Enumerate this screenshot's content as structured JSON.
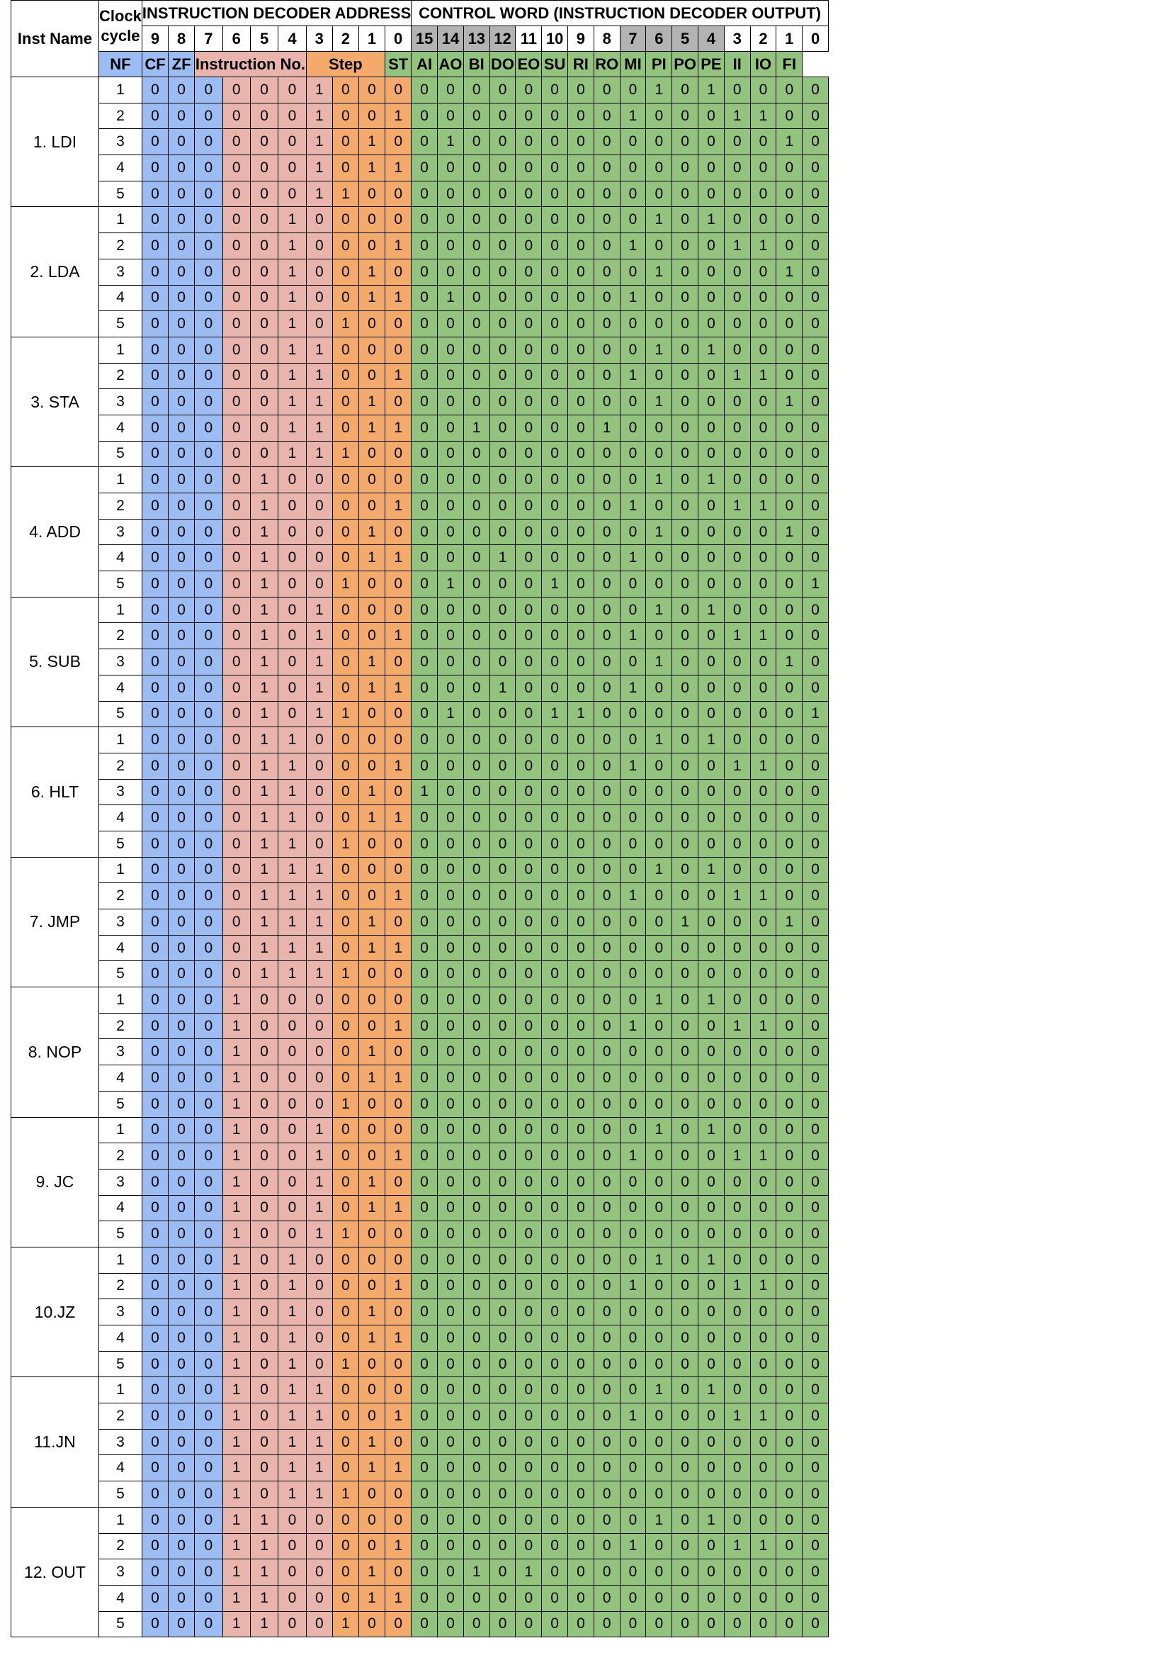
{
  "header": {
    "inst_name": "Inst Name",
    "clock_cycle": "Clock cycle",
    "decoder_address": "INSTRUCTION DECODER ADDRESS",
    "control_word": "CONTROL WORD (INSTRUCTION DECODER OUTPUT)",
    "address_bits": [
      "9",
      "8",
      "7",
      "6",
      "5",
      "4",
      "3",
      "2",
      "1",
      "0"
    ],
    "control_bits": [
      "15",
      "14",
      "13",
      "12",
      "11",
      "10",
      "9",
      "8",
      "7",
      "6",
      "5",
      "4",
      "3",
      "2",
      "1",
      "0"
    ],
    "flag_labels": [
      "NF",
      "CF",
      "ZF"
    ],
    "instruction_no_label": "Instruction No.",
    "step_label": "Step",
    "signal_labels": [
      "ST",
      "AI",
      "AO",
      "BI",
      "DO",
      "EO",
      "SU",
      "RI",
      "RO",
      "MI",
      "PI",
      "PO",
      "PE",
      "II",
      "IO",
      "FI"
    ]
  },
  "colors": {
    "flags": "#9cbdf4",
    "instruction": "#e8b4ac",
    "step": "#f4aa6a",
    "control": "#93c47d",
    "highlighted_bit_header": "#b3b3b3",
    "grey_control_bits": [
      "15",
      "14",
      "13",
      "12",
      "7",
      "6",
      "5",
      "4"
    ]
  },
  "instructions": [
    {
      "name": "1. LDI",
      "steps": [
        {
          "cycle": "1",
          "address": "0000001000",
          "control": "0000000001010000"
        },
        {
          "cycle": "2",
          "address": "0000001001",
          "control": "0000000010001100"
        },
        {
          "cycle": "3",
          "address": "0000001010",
          "control": "0100000000000010"
        },
        {
          "cycle": "4",
          "address": "0000001011",
          "control": "0000000000000000"
        },
        {
          "cycle": "5",
          "address": "0000001100",
          "control": "0000000000000000"
        }
      ]
    },
    {
      "name": "2. LDA",
      "steps": [
        {
          "cycle": "1",
          "address": "0000010000",
          "control": "0000000001010000"
        },
        {
          "cycle": "2",
          "address": "0000010001",
          "control": "0000000010001100"
        },
        {
          "cycle": "3",
          "address": "0000010010",
          "control": "0000000001000010"
        },
        {
          "cycle": "4",
          "address": "0000010011",
          "control": "0100000010000000"
        },
        {
          "cycle": "5",
          "address": "0000010100",
          "control": "0000000000000000"
        }
      ]
    },
    {
      "name": "3. STA",
      "steps": [
        {
          "cycle": "1",
          "address": "0000011000",
          "control": "0000000001010000"
        },
        {
          "cycle": "2",
          "address": "0000011001",
          "control": "0000000010001100"
        },
        {
          "cycle": "3",
          "address": "0000011010",
          "control": "0000000001000010"
        },
        {
          "cycle": "4",
          "address": "0000011011",
          "control": "0010000100000000"
        },
        {
          "cycle": "5",
          "address": "0000011100",
          "control": "0000000000000000"
        }
      ]
    },
    {
      "name": "4. ADD",
      "steps": [
        {
          "cycle": "1",
          "address": "0000100000",
          "control": "0000000001010000"
        },
        {
          "cycle": "2",
          "address": "0000100001",
          "control": "0000000010001100"
        },
        {
          "cycle": "3",
          "address": "0000100010",
          "control": "0000000001000010"
        },
        {
          "cycle": "4",
          "address": "0000100011",
          "control": "0001000010000000"
        },
        {
          "cycle": "5",
          "address": "0000100100",
          "control": "0100010000000001"
        }
      ]
    },
    {
      "name": "5. SUB",
      "steps": [
        {
          "cycle": "1",
          "address": "0000101000",
          "control": "0000000001010000"
        },
        {
          "cycle": "2",
          "address": "0000101001",
          "control": "0000000010001100"
        },
        {
          "cycle": "3",
          "address": "0000101010",
          "control": "0000000001000010"
        },
        {
          "cycle": "4",
          "address": "0000101011",
          "control": "0001000010000000"
        },
        {
          "cycle": "5",
          "address": "0000101100",
          "control": "0100011000000001"
        }
      ]
    },
    {
      "name": "6. HLT",
      "steps": [
        {
          "cycle": "1",
          "address": "0000110000",
          "control": "0000000001010000"
        },
        {
          "cycle": "2",
          "address": "0000110001",
          "control": "0000000010001100"
        },
        {
          "cycle": "3",
          "address": "0000110010",
          "control": "1000000000000000"
        },
        {
          "cycle": "4",
          "address": "0000110011",
          "control": "0000000000000000"
        },
        {
          "cycle": "5",
          "address": "0000110100",
          "control": "0000000000000000"
        }
      ]
    },
    {
      "name": "7. JMP",
      "steps": [
        {
          "cycle": "1",
          "address": "0000111000",
          "control": "0000000001010000"
        },
        {
          "cycle": "2",
          "address": "0000111001",
          "control": "0000000010001100"
        },
        {
          "cycle": "3",
          "address": "0000111010",
          "control": "0000000000100010"
        },
        {
          "cycle": "4",
          "address": "0000111011",
          "control": "0000000000000000"
        },
        {
          "cycle": "5",
          "address": "0000111100",
          "control": "0000000000000000"
        }
      ]
    },
    {
      "name": "8. NOP",
      "steps": [
        {
          "cycle": "1",
          "address": "0001000000",
          "control": "0000000001010000"
        },
        {
          "cycle": "2",
          "address": "0001000001",
          "control": "0000000010001100"
        },
        {
          "cycle": "3",
          "address": "0001000010",
          "control": "0000000000000000"
        },
        {
          "cycle": "4",
          "address": "0001000011",
          "control": "0000000000000000"
        },
        {
          "cycle": "5",
          "address": "0001000100",
          "control": "0000000000000000"
        }
      ]
    },
    {
      "name": "9. JC",
      "steps": [
        {
          "cycle": "1",
          "address": "0001001000",
          "control": "0000000001010000"
        },
        {
          "cycle": "2",
          "address": "0001001001",
          "control": "0000000010001100"
        },
        {
          "cycle": "3",
          "address": "0001001010",
          "control": "0000000000000000"
        },
        {
          "cycle": "4",
          "address": "0001001011",
          "control": "0000000000000000"
        },
        {
          "cycle": "5",
          "address": "0001001100",
          "control": "0000000000000000"
        }
      ]
    },
    {
      "name": "10.JZ",
      "steps": [
        {
          "cycle": "1",
          "address": "0001010000",
          "control": "0000000001010000"
        },
        {
          "cycle": "2",
          "address": "0001010001",
          "control": "0000000010001100"
        },
        {
          "cycle": "3",
          "address": "0001010010",
          "control": "0000000000000000"
        },
        {
          "cycle": "4",
          "address": "0001010011",
          "control": "0000000000000000"
        },
        {
          "cycle": "5",
          "address": "0001010100",
          "control": "0000000000000000"
        }
      ]
    },
    {
      "name": "11.JN",
      "steps": [
        {
          "cycle": "1",
          "address": "0001011000",
          "control": "0000000001010000"
        },
        {
          "cycle": "2",
          "address": "0001011001",
          "control": "0000000010001100"
        },
        {
          "cycle": "3",
          "address": "0001011010",
          "control": "0000000000000000"
        },
        {
          "cycle": "4",
          "address": "0001011011",
          "control": "0000000000000000"
        },
        {
          "cycle": "5",
          "address": "0001011100",
          "control": "0000000000000000"
        }
      ]
    },
    {
      "name": "12. OUT",
      "steps": [
        {
          "cycle": "1",
          "address": "0001100000",
          "control": "0000000001010000"
        },
        {
          "cycle": "2",
          "address": "0001100001",
          "control": "0000000010001100"
        },
        {
          "cycle": "3",
          "address": "0001100010",
          "control": "0010100000000000"
        },
        {
          "cycle": "4",
          "address": "0001100011",
          "control": "0000000000000000"
        },
        {
          "cycle": "5",
          "address": "0001100100",
          "control": "0000000000000000"
        }
      ]
    }
  ]
}
